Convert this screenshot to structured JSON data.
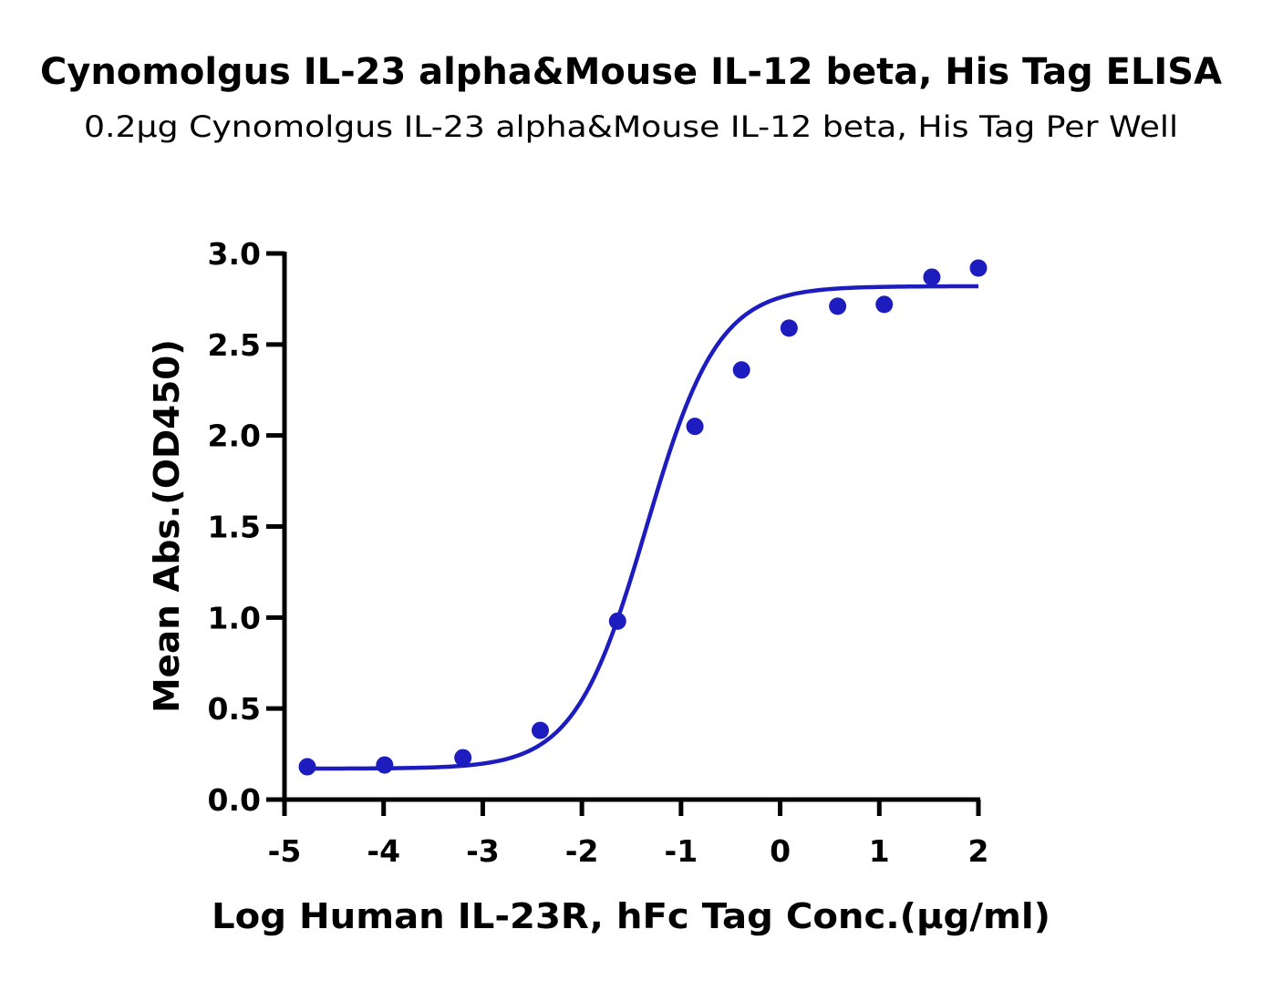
{
  "chart_data": {
    "type": "scatter",
    "title": "Cynomolgus IL-23 alpha&Mouse IL-12 beta, His Tag ELISA",
    "subtitle": "0.2μg Cynomolgus IL-23 alpha&Mouse IL-12 beta, His Tag Per Well",
    "xlabel": "Log Human IL-23R, hFc Tag Conc.(μg/ml)",
    "ylabel": "Mean Abs.(OD450)",
    "xlim": [
      -5,
      2
    ],
    "ylim": [
      0,
      3
    ],
    "x_ticks": [
      "-5",
      "-4",
      "-3",
      "-2",
      "-1",
      "0",
      "1",
      "2"
    ],
    "y_ticks": [
      "0.0",
      "0.5",
      "1.0",
      "1.5",
      "2.0",
      "2.5",
      "3.0"
    ],
    "grid": false,
    "color": "#1d1dbf",
    "series": [
      {
        "x": [
          -4.77,
          -3.99,
          -3.2,
          -2.42,
          -1.64,
          -0.86,
          -0.39,
          0.09,
          0.58,
          1.05,
          1.53,
          2.0
        ],
        "y": [
          0.18,
          0.19,
          0.23,
          0.38,
          0.98,
          2.05,
          2.36,
          2.59,
          2.71,
          2.72,
          2.87,
          2.92
        ],
        "fit": {
          "model": "4PL",
          "bottom": 0.17,
          "top": 2.82,
          "logEC50": -1.35,
          "hill": 1.2
        }
      }
    ]
  }
}
